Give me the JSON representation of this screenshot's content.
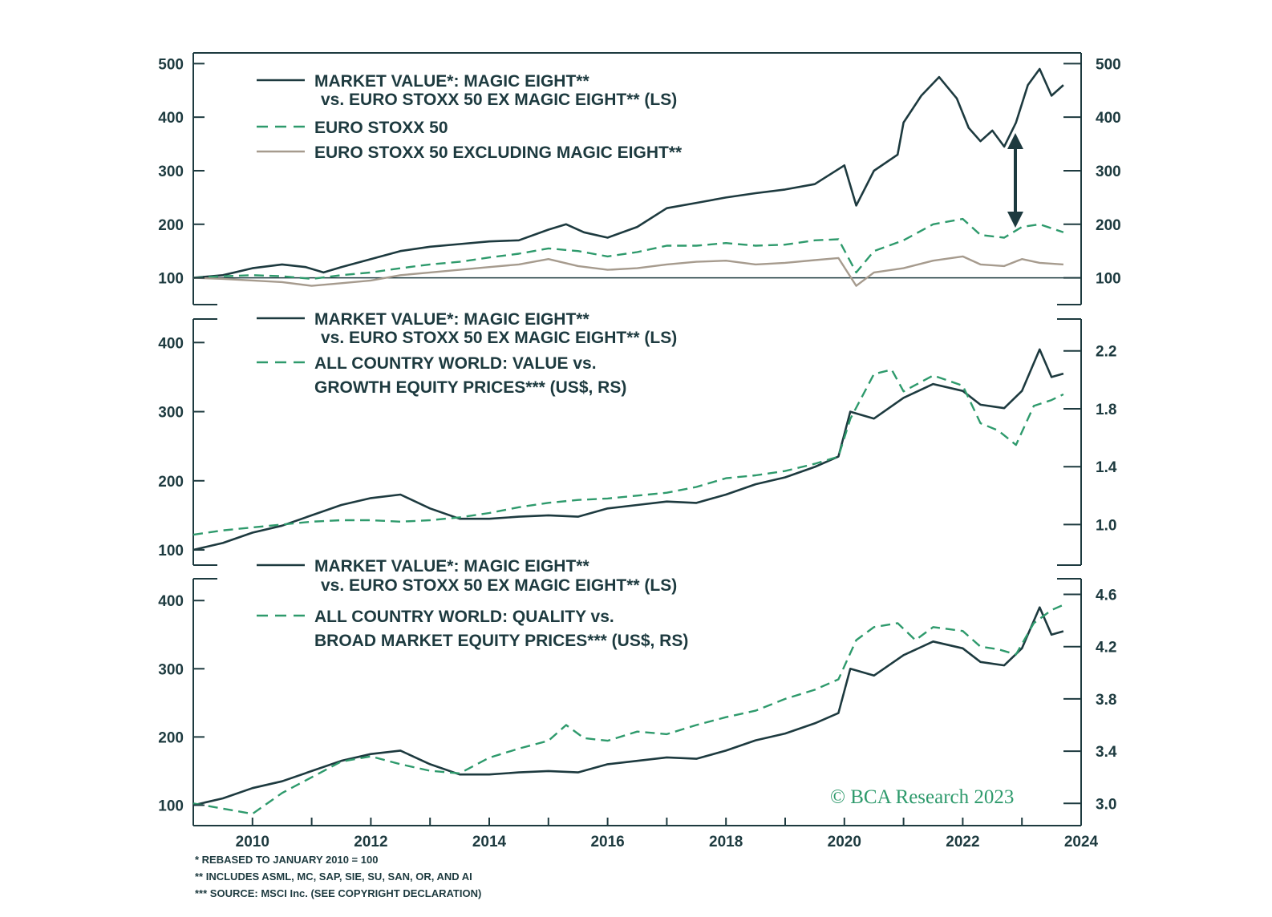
{
  "colors": {
    "dark": "#1d3a3f",
    "green": "#2e9a6c",
    "taupe": "#a69b8e"
  },
  "watermark": "© BCA Research 2023",
  "notes": [
    "* REBASED TO JANUARY 2010 = 100",
    "** INCLUDES ASML, MC, SAP, SIE, SU, SAN, OR, AND AI",
    "*** SOURCE: MSCI Inc. (SEE COPYRIGHT DECLARATION)"
  ],
  "chart_data": [
    {
      "type": "line",
      "x_range": [
        2009.0,
        2024.0
      ],
      "x_ticks": [
        "2010",
        "2012",
        "2014",
        "2016",
        "2018",
        "2020",
        "2022",
        "2024"
      ],
      "left_ylim": [
        50,
        520
      ],
      "left_ticks": [
        "100",
        "200",
        "300",
        "400",
        "500"
      ],
      "right_ticks": [
        "100",
        "200",
        "300",
        "400",
        "500"
      ],
      "baseline": 100,
      "legend": [
        "MARKET VALUE*: MAGIC EIGHT**",
        "vs. EURO STOXX 50 EX MAGIC EIGHT** (LS)",
        "EURO STOXX 50",
        "EURO STOXX 50 EXCLUDING MAGIC EIGHT**"
      ],
      "series": [
        {
          "name": "MARKET VALUE*: MAGIC EIGHT** vs. EURO STOXX 50 EX MAGIC EIGHT** (LS)",
          "style": "solid",
          "color": "dark",
          "x": [
            2009.0,
            2009.5,
            2010.0,
            2010.5,
            2010.9,
            2011.2,
            2011.5,
            2012.0,
            2012.5,
            2013.0,
            2013.5,
            2014.0,
            2014.5,
            2015.0,
            2015.3,
            2015.6,
            2016.0,
            2016.5,
            2017.0,
            2017.5,
            2018.0,
            2018.5,
            2019.0,
            2019.5,
            2020.0,
            2020.2,
            2020.5,
            2020.9,
            2021.0,
            2021.3,
            2021.6,
            2021.9,
            2022.1,
            2022.3,
            2022.5,
            2022.7,
            2022.9,
            2023.1,
            2023.3,
            2023.5,
            2023.7
          ],
          "y": [
            100,
            105,
            118,
            125,
            120,
            110,
            120,
            135,
            150,
            158,
            163,
            168,
            170,
            190,
            200,
            185,
            175,
            195,
            230,
            240,
            250,
            258,
            265,
            275,
            310,
            235,
            300,
            330,
            390,
            440,
            475,
            435,
            380,
            355,
            375,
            345,
            390,
            460,
            490,
            440,
            460
          ]
        },
        {
          "name": "EURO STOXX 50",
          "style": "dashed",
          "color": "green",
          "x": [
            2009.0,
            2009.5,
            2010.0,
            2010.5,
            2011.0,
            2011.5,
            2012.0,
            2012.5,
            2013.0,
            2013.5,
            2014.0,
            2014.5,
            2015.0,
            2015.5,
            2016.0,
            2016.5,
            2017.0,
            2017.5,
            2018.0,
            2018.5,
            2019.0,
            2019.5,
            2019.9,
            2020.2,
            2020.5,
            2021.0,
            2021.5,
            2022.0,
            2022.3,
            2022.7,
            2023.0,
            2023.3,
            2023.7
          ],
          "y": [
            100,
            103,
            105,
            103,
            98,
            105,
            110,
            118,
            125,
            130,
            138,
            145,
            155,
            150,
            140,
            148,
            160,
            160,
            165,
            160,
            162,
            170,
            172,
            110,
            150,
            170,
            200,
            210,
            180,
            175,
            195,
            200,
            185
          ]
        },
        {
          "name": "EURO STOXX 50 EXCLUDING MAGIC EIGHT**",
          "style": "solid",
          "color": "taupe",
          "x": [
            2009.0,
            2009.5,
            2010.0,
            2010.5,
            2011.0,
            2011.5,
            2012.0,
            2012.5,
            2013.0,
            2013.5,
            2014.0,
            2014.5,
            2015.0,
            2015.5,
            2016.0,
            2016.5,
            2017.0,
            2017.5,
            2018.0,
            2018.5,
            2019.0,
            2019.5,
            2019.9,
            2020.2,
            2020.5,
            2021.0,
            2021.5,
            2022.0,
            2022.3,
            2022.7,
            2023.0,
            2023.3,
            2023.7
          ],
          "y": [
            100,
            98,
            95,
            92,
            85,
            90,
            95,
            105,
            110,
            115,
            120,
            125,
            135,
            122,
            115,
            118,
            125,
            130,
            132,
            125,
            128,
            133,
            137,
            85,
            110,
            118,
            132,
            140,
            125,
            122,
            135,
            128,
            125
          ]
        }
      ]
    },
    {
      "type": "line",
      "x_range": [
        2009.0,
        2024.0
      ],
      "left_ylim": [
        78,
        434
      ],
      "right_ylim": [
        0.72,
        2.42
      ],
      "left_ticks": [
        "100",
        "200",
        "300",
        "400"
      ],
      "right_ticks": [
        "1.0",
        "1.4",
        "1.8",
        "2.2"
      ],
      "legend": [
        "MARKET VALUE*: MAGIC EIGHT**",
        "vs. EURO STOXX 50 EX MAGIC EIGHT** (LS)",
        "ALL COUNTRY WORLD: VALUE vs.",
        "GROWTH EQUITY PRICES*** (US$, RS)"
      ],
      "series": [
        {
          "name": "MARKET VALUE*: MAGIC EIGHT** vs. EURO STOXX 50 EX MAGIC EIGHT** (LS)",
          "style": "solid",
          "color": "dark",
          "axis": "left",
          "x": [
            2009.0,
            2009.5,
            2010.0,
            2010.5,
            2011.0,
            2011.5,
            2012.0,
            2012.5,
            2013.0,
            2013.5,
            2014.0,
            2014.5,
            2015.0,
            2015.5,
            2016.0,
            2016.5,
            2017.0,
            2017.5,
            2018.0,
            2018.5,
            2019.0,
            2019.5,
            2019.9,
            2020.1,
            2020.5,
            2021.0,
            2021.5,
            2022.0,
            2022.3,
            2022.7,
            2023.0,
            2023.3,
            2023.5,
            2023.7
          ],
          "y": [
            100,
            110,
            125,
            135,
            150,
            165,
            175,
            180,
            160,
            145,
            145,
            148,
            150,
            148,
            160,
            165,
            170,
            168,
            180,
            195,
            205,
            220,
            235,
            300,
            290,
            320,
            340,
            330,
            310,
            305,
            330,
            390,
            350,
            355
          ]
        },
        {
          "name": "ALL COUNTRY WORLD: VALUE vs. GROWTH EQUITY PRICES*** (US$, RS)",
          "style": "dashed",
          "color": "green",
          "axis": "right",
          "x": [
            2009.0,
            2009.5,
            2010.0,
            2010.5,
            2011.0,
            2011.5,
            2012.0,
            2012.5,
            2013.0,
            2013.5,
            2014.0,
            2014.5,
            2015.0,
            2015.5,
            2016.0,
            2016.5,
            2017.0,
            2017.5,
            2018.0,
            2018.5,
            2019.0,
            2019.5,
            2019.9,
            2020.1,
            2020.5,
            2020.8,
            2021.0,
            2021.5,
            2022.0,
            2022.3,
            2022.6,
            2022.9,
            2023.2,
            2023.5,
            2023.7
          ],
          "y": [
            0.93,
            0.96,
            0.98,
            1.0,
            1.02,
            1.03,
            1.03,
            1.02,
            1.03,
            1.05,
            1.08,
            1.12,
            1.15,
            1.17,
            1.18,
            1.2,
            1.22,
            1.26,
            1.32,
            1.34,
            1.37,
            1.42,
            1.47,
            1.73,
            2.04,
            2.07,
            1.92,
            2.03,
            1.96,
            1.7,
            1.65,
            1.55,
            1.82,
            1.86,
            1.9
          ]
        }
      ]
    },
    {
      "type": "line",
      "x_range": [
        2009.0,
        2024.0
      ],
      "left_ylim": [
        70,
        432
      ],
      "right_ylim": [
        2.83,
        4.72
      ],
      "left_ticks": [
        "100",
        "200",
        "300",
        "400"
      ],
      "right_ticks": [
        "3.0",
        "3.4",
        "3.8",
        "4.2",
        "4.6"
      ],
      "legend": [
        "MARKET VALUE*: MAGIC EIGHT**",
        "vs. EURO STOXX 50 EX MAGIC EIGHT** (LS)",
        "ALL COUNTRY WORLD: QUALITY vs.",
        "BROAD MARKET EQUITY PRICES*** (US$, RS)"
      ],
      "series": [
        {
          "name": "MARKET VALUE*: MAGIC EIGHT** vs. EURO STOXX 50 EX MAGIC EIGHT** (LS)",
          "style": "solid",
          "color": "dark",
          "axis": "left",
          "x": [
            2009.0,
            2009.5,
            2010.0,
            2010.5,
            2011.0,
            2011.5,
            2012.0,
            2012.5,
            2013.0,
            2013.5,
            2014.0,
            2014.5,
            2015.0,
            2015.5,
            2016.0,
            2016.5,
            2017.0,
            2017.5,
            2018.0,
            2018.5,
            2019.0,
            2019.5,
            2019.9,
            2020.1,
            2020.5,
            2021.0,
            2021.5,
            2022.0,
            2022.3,
            2022.7,
            2023.0,
            2023.3,
            2023.5,
            2023.7
          ],
          "y": [
            100,
            110,
            125,
            135,
            150,
            165,
            175,
            180,
            160,
            145,
            145,
            148,
            150,
            148,
            160,
            165,
            170,
            168,
            180,
            195,
            205,
            220,
            235,
            300,
            290,
            320,
            340,
            330,
            310,
            305,
            330,
            390,
            350,
            355
          ]
        },
        {
          "name": "ALL COUNTRY WORLD: QUALITY vs. BROAD MARKET EQUITY PRICES*** (US$, RS)",
          "style": "dashed",
          "color": "green",
          "axis": "right",
          "x": [
            2009.0,
            2009.5,
            2010.0,
            2010.5,
            2011.0,
            2011.5,
            2012.0,
            2012.5,
            2013.0,
            2013.5,
            2014.0,
            2014.5,
            2015.0,
            2015.3,
            2015.6,
            2016.0,
            2016.5,
            2017.0,
            2017.5,
            2018.0,
            2018.5,
            2019.0,
            2019.5,
            2019.9,
            2020.2,
            2020.5,
            2020.9,
            2021.2,
            2021.5,
            2022.0,
            2022.3,
            2022.6,
            2022.9,
            2023.2,
            2023.5,
            2023.7
          ],
          "y": [
            3.0,
            2.96,
            2.92,
            3.08,
            3.2,
            3.32,
            3.36,
            3.3,
            3.25,
            3.23,
            3.35,
            3.42,
            3.48,
            3.6,
            3.5,
            3.48,
            3.55,
            3.53,
            3.6,
            3.66,
            3.71,
            3.8,
            3.87,
            3.95,
            4.25,
            4.35,
            4.38,
            4.25,
            4.35,
            4.32,
            4.2,
            4.18,
            4.14,
            4.38,
            4.48,
            4.52
          ]
        }
      ]
    }
  ]
}
